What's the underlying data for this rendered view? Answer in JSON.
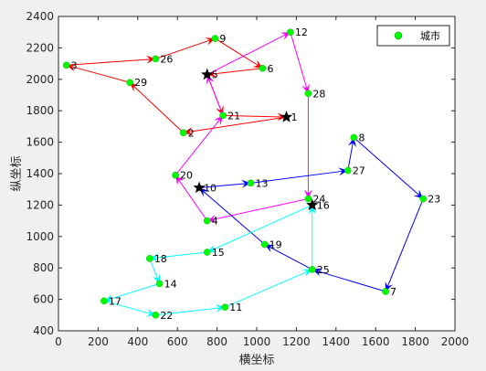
{
  "chart_data": {
    "type": "scatter",
    "title": "",
    "xlabel": "横坐标",
    "ylabel": "纵坐标",
    "xlim": [
      0,
      2000
    ],
    "ylim": [
      400,
      2400
    ],
    "xticks": [
      0,
      200,
      400,
      600,
      800,
      1000,
      1200,
      1400,
      1600,
      1800,
      2000
    ],
    "yticks": [
      400,
      600,
      800,
      1000,
      1200,
      1400,
      1600,
      1800,
      2000,
      2200,
      2400
    ],
    "grid": false,
    "legend": {
      "label": "城市",
      "placement": "top-right"
    },
    "marker_color": "#00ff00",
    "depot_color": "#000000",
    "cities": [
      {
        "id": "1",
        "x": 1150,
        "y": 1760
      },
      {
        "id": "2",
        "x": 630,
        "y": 1660
      },
      {
        "id": "3",
        "x": 40,
        "y": 2090
      },
      {
        "id": "4",
        "x": 750,
        "y": 1100
      },
      {
        "id": "5",
        "x": 750,
        "y": 2030
      },
      {
        "id": "6",
        "x": 1030,
        "y": 2070
      },
      {
        "id": "7",
        "x": 1650,
        "y": 650
      },
      {
        "id": "8",
        "x": 1490,
        "y": 1630
      },
      {
        "id": "9",
        "x": 790,
        "y": 2260
      },
      {
        "id": "10",
        "x": 710,
        "y": 1310
      },
      {
        "id": "11",
        "x": 840,
        "y": 550
      },
      {
        "id": "12",
        "x": 1170,
        "y": 2300
      },
      {
        "id": "13",
        "x": 970,
        "y": 1340
      },
      {
        "id": "14",
        "x": 510,
        "y": 700
      },
      {
        "id": "15",
        "x": 750,
        "y": 900
      },
      {
        "id": "16",
        "x": 1280,
        "y": 1200
      },
      {
        "id": "17",
        "x": 230,
        "y": 590
      },
      {
        "id": "18",
        "x": 460,
        "y": 860
      },
      {
        "id": "19",
        "x": 1040,
        "y": 950
      },
      {
        "id": "20",
        "x": 590,
        "y": 1390
      },
      {
        "id": "21",
        "x": 830,
        "y": 1770
      },
      {
        "id": "22",
        "x": 490,
        "y": 500
      },
      {
        "id": "23",
        "x": 1840,
        "y": 1240
      },
      {
        "id": "24",
        "x": 1260,
        "y": 1240
      },
      {
        "id": "25",
        "x": 1280,
        "y": 790
      },
      {
        "id": "26",
        "x": 490,
        "y": 2130
      },
      {
        "id": "27",
        "x": 1460,
        "y": 1420
      },
      {
        "id": "28",
        "x": 1260,
        "y": 1910
      },
      {
        "id": "29",
        "x": 360,
        "y": 1980
      }
    ],
    "depots": [
      "1",
      "5",
      "10",
      "16"
    ],
    "routes": [
      {
        "color": "#ff0000",
        "path": [
          "1",
          "2",
          "29",
          "3",
          "26",
          "9",
          "6",
          "5",
          "21",
          "1"
        ]
      },
      {
        "color": "#ff00ff",
        "path": [
          "5",
          "12",
          "28",
          "24",
          "4",
          "20",
          "21",
          "5"
        ]
      },
      {
        "color": "#0000ff",
        "path": [
          "10",
          "13",
          "27",
          "8",
          "23",
          "7",
          "25",
          "19",
          "10"
        ]
      },
      {
        "color": "#00ffff",
        "path": [
          "16",
          "15",
          "18",
          "14",
          "17",
          "22",
          "11",
          "25",
          "16"
        ]
      }
    ]
  }
}
